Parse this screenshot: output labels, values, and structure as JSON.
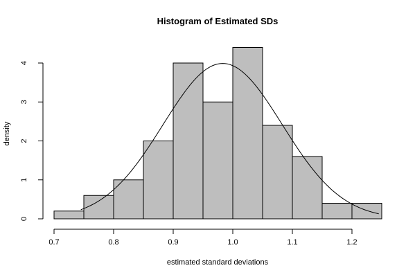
{
  "chart_data": {
    "type": "bar",
    "title": "Histogram of Estimated SDs",
    "xlabel": "estimated standard deviations",
    "ylabel": "density",
    "xlim": [
      0.7,
      1.25
    ],
    "ylim": [
      0,
      4
    ],
    "x_ticks": [
      0.7,
      0.8,
      0.9,
      1.0,
      1.1,
      1.2
    ],
    "x_tick_labels": [
      "0.7",
      "0.8",
      "0.9",
      "1.0",
      "1.1",
      "1.2"
    ],
    "y_ticks": [
      0,
      1,
      2,
      3,
      4
    ],
    "y_tick_labels": [
      "0",
      "1",
      "2",
      "3",
      "4"
    ],
    "bin_edges": [
      0.7,
      0.75,
      0.8,
      0.85,
      0.9,
      0.95,
      1.0,
      1.05,
      1.1,
      1.15,
      1.2,
      1.25
    ],
    "values": [
      0.2,
      0.6,
      1.0,
      2.0,
      4.0,
      3.0,
      4.4,
      2.4,
      1.6,
      0.4,
      0.4
    ],
    "density_curve": {
      "distribution": "normal",
      "mean": 0.983,
      "sd": 0.1,
      "x_range": [
        0.745,
        1.245
      ]
    },
    "bar_color": "#bebebe",
    "grid": false
  }
}
